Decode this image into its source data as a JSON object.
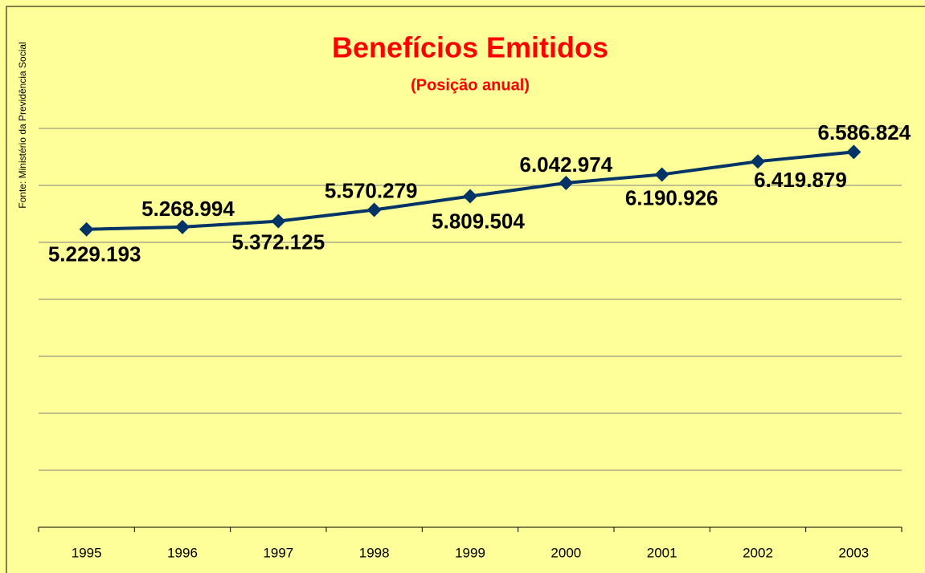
{
  "chart_data": {
    "type": "line",
    "title": "Benefícios Emitidos",
    "subtitle": "(Posição anual)",
    "source": "Fonte: Ministério da Previdência Social",
    "categories": [
      "1995",
      "1996",
      "1997",
      "1998",
      "1999",
      "2000",
      "2001",
      "2002",
      "2003"
    ],
    "series": [
      {
        "color": "#003366",
        "values": [
          5229193,
          5268994,
          5372125,
          5570279,
          5809504,
          6042974,
          6190926,
          6419879,
          6586824
        ],
        "value_labels": [
          "5.229.193",
          "5.268.994",
          "5.372.125",
          "5.570.279",
          "5.809.504",
          "6.042.974",
          "6.190.926",
          "6.419.879",
          "6.586.824"
        ]
      }
    ],
    "ylim": [
      0,
      7000000
    ],
    "yticks": [
      1000000,
      2000000,
      3000000,
      4000000,
      5000000,
      6000000,
      7000000
    ],
    "grid": true
  }
}
